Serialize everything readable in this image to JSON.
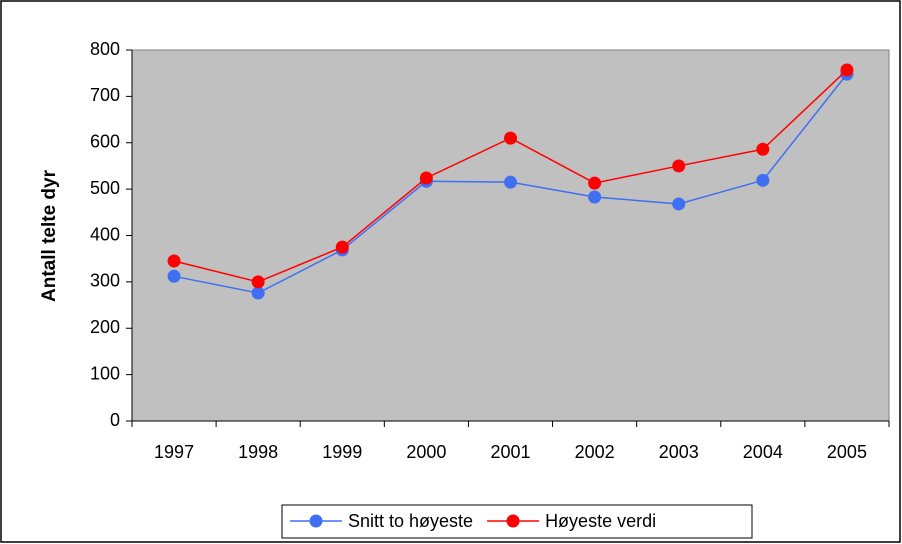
{
  "chart_data": {
    "type": "line",
    "y_label": "Antall telte dyr",
    "categories": [
      "1997",
      "1998",
      "1999",
      "2000",
      "2001",
      "2002",
      "2003",
      "2004",
      "2005"
    ],
    "series": [
      {
        "name": "Snitt to høyeste",
        "color": "#3f6ff3",
        "values": [
          312,
          276,
          369,
          517,
          515,
          483,
          468,
          519,
          748
        ]
      },
      {
        "name": "Høyeste verdi",
        "color": "#ff0000",
        "values": [
          345,
          300,
          375,
          524,
          610,
          513,
          550,
          586,
          757
        ]
      }
    ],
    "ylim": [
      0,
      800
    ],
    "yticks": [
      0,
      100,
      200,
      300,
      400,
      500,
      600,
      700,
      800
    ],
    "plot_background": "#c0c0c0",
    "legend": "bottom"
  }
}
